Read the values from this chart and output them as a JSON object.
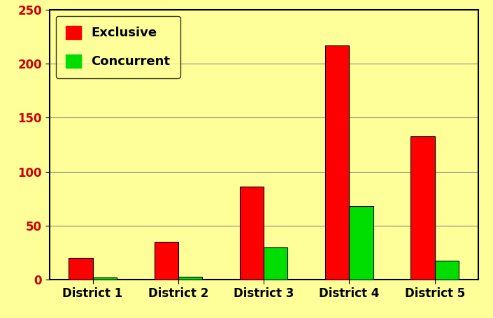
{
  "categories": [
    "District 1",
    "District 2",
    "District 3",
    "District 4",
    "District 5"
  ],
  "exclusive": [
    20,
    35,
    86,
    217,
    133
  ],
  "concurrent": [
    2,
    3,
    30,
    68,
    18
  ],
  "exclusive_color": "#ff0000",
  "concurrent_color": "#00dd00",
  "background_color": "#ffff99",
  "ylim": [
    0,
    250
  ],
  "yticks": [
    0,
    50,
    100,
    150,
    200,
    250
  ],
  "legend_exclusive": "Exclusive",
  "legend_concurrent": "Concurrent",
  "bar_width": 0.28,
  "grid_color": "#888888",
  "tick_fontsize": 12,
  "legend_fontsize": 13,
  "bar_edge_color": "#000000",
  "spine_color": "#000000",
  "tick_label_color": "#cc0000"
}
